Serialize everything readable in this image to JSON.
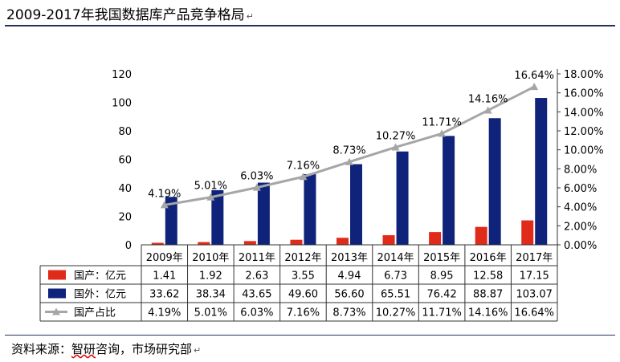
{
  "title": "2009-2017年我国数据库产品竞争格局",
  "source_prefix": "资料来源：",
  "source_highlight": "智研",
  "source_rest": "咨询，市场研究部",
  "colors": {
    "domestic": "#e02b1a",
    "foreign": "#0f237a",
    "share": "#a6a6a6",
    "rule": "#23325f"
  },
  "chart_data": {
    "type": "bar",
    "categories": [
      "2009年",
      "2010年",
      "2011年",
      "2012年",
      "2013年",
      "2014年",
      "2015年",
      "2016年",
      "2017年"
    ],
    "series": [
      {
        "name": "国产：亿元",
        "type": "bar",
        "axis": "left",
        "values": [
          1.41,
          1.92,
          2.63,
          3.55,
          4.94,
          6.73,
          8.95,
          12.58,
          17.15
        ],
        "labels": [
          "1.41",
          "1.92",
          "2.63",
          "3.55",
          "4.94",
          "6.73",
          "8.95",
          "12.58",
          "17.15"
        ]
      },
      {
        "name": "国外：亿元",
        "type": "bar",
        "axis": "left",
        "values": [
          33.62,
          38.34,
          43.65,
          49.6,
          56.6,
          65.51,
          76.42,
          88.87,
          103.07
        ],
        "labels": [
          "33.62",
          "38.34",
          "43.65",
          "49.60",
          "56.60",
          "65.51",
          "76.42",
          "88.87",
          "103.07"
        ]
      },
      {
        "name": "国产占比",
        "type": "line",
        "axis": "right",
        "values": [
          4.19,
          5.01,
          6.03,
          7.16,
          8.73,
          10.27,
          11.71,
          14.16,
          16.64
        ],
        "labels": [
          "4.19%",
          "5.01%",
          "6.03%",
          "7.16%",
          "8.73%",
          "10.27%",
          "11.71%",
          "14.16%",
          "16.64%"
        ]
      }
    ],
    "y_left": {
      "ylim": [
        0,
        120
      ],
      "ticks": [
        "0",
        "20",
        "40",
        "60",
        "80",
        "100",
        "120"
      ]
    },
    "y_right": {
      "ylim": [
        0,
        18
      ],
      "ticks": [
        "0.00%",
        "2.00%",
        "4.00%",
        "6.00%",
        "8.00%",
        "10.00%",
        "12.00%",
        "14.00%",
        "16.00%",
        "18.00%"
      ]
    },
    "legend": "table-below"
  }
}
